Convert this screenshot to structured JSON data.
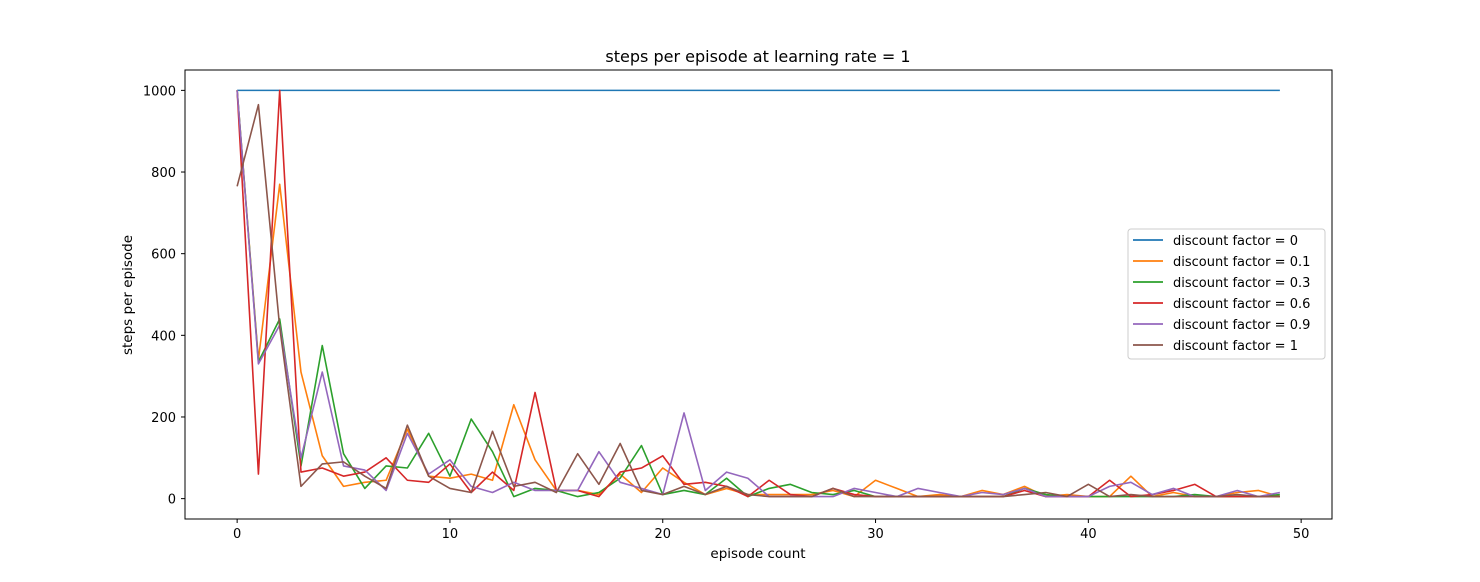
{
  "chart_data": {
    "type": "line",
    "title": "steps per episode at learning rate = 1",
    "xlabel": "episode count",
    "ylabel": "steps per episode",
    "xlim": [
      -2.45,
      51.45
    ],
    "ylim": [
      -49.9,
      1049.9
    ],
    "xticks": [
      "0",
      "10",
      "20",
      "30",
      "40",
      "50"
    ],
    "yticks": [
      "0",
      "200",
      "400",
      "600",
      "800",
      "1000"
    ],
    "grid": false,
    "legend_position": "center-right",
    "x": [
      0,
      1,
      2,
      3,
      4,
      5,
      6,
      7,
      8,
      9,
      10,
      11,
      12,
      13,
      14,
      15,
      16,
      17,
      18,
      19,
      20,
      21,
      22,
      23,
      24,
      25,
      26,
      27,
      28,
      29,
      30,
      31,
      32,
      33,
      34,
      35,
      36,
      37,
      38,
      39,
      40,
      41,
      42,
      43,
      44,
      45,
      46,
      47,
      48,
      49
    ],
    "series": [
      {
        "name": "discount factor = 0",
        "color": "#1f77b4",
        "values": [
          1000,
          1000,
          1000,
          1000,
          1000,
          1000,
          1000,
          1000,
          1000,
          1000,
          1000,
          1000,
          1000,
          1000,
          1000,
          1000,
          1000,
          1000,
          1000,
          1000,
          1000,
          1000,
          1000,
          1000,
          1000,
          1000,
          1000,
          1000,
          1000,
          1000,
          1000,
          1000,
          1000,
          1000,
          1000,
          1000,
          1000,
          1000,
          1000,
          1000,
          1000,
          1000,
          1000,
          1000,
          1000,
          1000,
          1000,
          1000,
          1000,
          1000
        ]
      },
      {
        "name": "discount factor = 0.1",
        "color": "#ff7f0e",
        "values": [
          1000,
          340,
          770,
          310,
          105,
          30,
          40,
          45,
          170,
          55,
          50,
          60,
          45,
          230,
          95,
          20,
          20,
          10,
          60,
          15,
          75,
          40,
          10,
          25,
          10,
          10,
          10,
          10,
          20,
          5,
          45,
          25,
          5,
          10,
          5,
          20,
          10,
          30,
          5,
          10,
          5,
          5,
          55,
          5,
          15,
          5,
          5,
          15,
          20,
          5
        ]
      },
      {
        "name": "discount factor = 0.3",
        "color": "#2ca02c",
        "values": [
          1000,
          335,
          440,
          80,
          375,
          110,
          25,
          80,
          75,
          160,
          55,
          195,
          115,
          5,
          25,
          20,
          5,
          15,
          50,
          130,
          10,
          20,
          10,
          50,
          5,
          25,
          35,
          15,
          10,
          20,
          5,
          5,
          5,
          5,
          5,
          5,
          5,
          25,
          10,
          5,
          5,
          5,
          5,
          5,
          5,
          10,
          5,
          5,
          5,
          10
        ]
      },
      {
        "name": "discount factor = 0.6",
        "color": "#d62728",
        "values": [
          1000,
          60,
          1000,
          65,
          75,
          55,
          65,
          100,
          45,
          40,
          85,
          15,
          65,
          20,
          260,
          20,
          20,
          5,
          65,
          75,
          105,
          35,
          40,
          30,
          5,
          45,
          10,
          5,
          25,
          10,
          5,
          5,
          5,
          5,
          5,
          5,
          5,
          20,
          5,
          5,
          5,
          45,
          5,
          10,
          20,
          35,
          5,
          5,
          5,
          5
        ]
      },
      {
        "name": "discount factor = 0.9",
        "color": "#9467bd",
        "values": [
          1000,
          330,
          425,
          100,
          310,
          80,
          70,
          20,
          160,
          60,
          95,
          30,
          15,
          40,
          20,
          20,
          20,
          115,
          40,
          25,
          10,
          210,
          20,
          65,
          50,
          5,
          5,
          5,
          5,
          25,
          15,
          5,
          25,
          15,
          5,
          15,
          10,
          25,
          5,
          5,
          5,
          30,
          40,
          10,
          25,
          5,
          5,
          20,
          5,
          15
        ]
      },
      {
        "name": "discount factor = 1",
        "color": "#8c564b",
        "values": [
          765,
          965,
          420,
          30,
          85,
          90,
          55,
          25,
          180,
          55,
          25,
          15,
          165,
          30,
          40,
          15,
          110,
          35,
          135,
          20,
          10,
          30,
          10,
          30,
          10,
          5,
          5,
          5,
          25,
          5,
          5,
          5,
          5,
          5,
          5,
          5,
          5,
          10,
          15,
          5,
          35,
          5,
          10,
          5,
          5,
          5,
          5,
          10,
          5,
          5
        ]
      }
    ]
  }
}
